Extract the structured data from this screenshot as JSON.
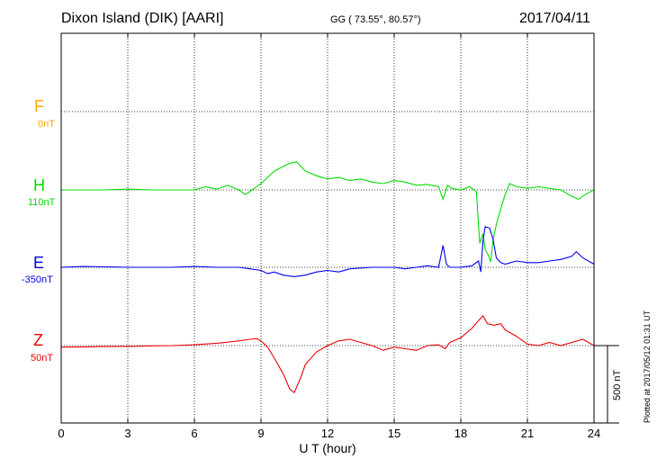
{
  "header": {
    "station": "Dixon Island (DIK)  [AARI]",
    "coords": "GG ( 73.55°,  80.57°)",
    "date": "2017/04/11"
  },
  "footer": {
    "plotted": "Plotted at 2017/05/12 01:31  UT"
  },
  "chart_data": {
    "type": "line",
    "xlabel": "U T (hour)",
    "xlim": [
      0,
      24
    ],
    "xticks": [
      "0",
      "3",
      "6",
      "9",
      "12",
      "15",
      "18",
      "21",
      "24"
    ],
    "scale_bar_label": "500 nT",
    "scale_bar_nT": 500,
    "channels": [
      {
        "name": "F",
        "baseline": "0nT",
        "color": "#ffa500"
      },
      {
        "name": "H",
        "baseline": "110nT",
        "color": "#00dd00"
      },
      {
        "name": "E",
        "baseline": "-350nT",
        "color": "#0000ee"
      },
      {
        "name": "Z",
        "baseline": "50nT",
        "color": "#ee0000"
      }
    ],
    "series": [
      {
        "name": "H",
        "x": [
          0,
          1,
          2,
          3,
          4,
          5,
          6,
          6.5,
          7,
          7.5,
          8,
          8.3,
          8.7,
          9,
          9.3,
          9.6,
          10,
          10.3,
          10.6,
          11,
          11.5,
          12,
          12.5,
          13,
          13.5,
          14,
          14.5,
          15,
          15.5,
          16,
          16.5,
          17,
          17.2,
          17.4,
          17.6,
          18,
          18.4,
          18.7,
          18.85,
          19,
          19.1,
          19.25,
          19.35,
          19.45,
          19.6,
          19.8,
          20,
          20.2,
          20.5,
          20.8,
          21,
          21.5,
          22,
          22.5,
          23,
          23.3,
          23.6,
          24
        ],
        "values": [
          0,
          0,
          0,
          5,
          0,
          0,
          0,
          20,
          5,
          30,
          0,
          -30,
          10,
          40,
          80,
          120,
          150,
          170,
          180,
          120,
          90,
          70,
          80,
          60,
          70,
          50,
          40,
          60,
          50,
          30,
          35,
          20,
          -60,
          30,
          10,
          0,
          20,
          -10,
          -340,
          -280,
          -380,
          -420,
          -460,
          -320,
          -220,
          -120,
          -30,
          40,
          20,
          15,
          10,
          20,
          10,
          0,
          -40,
          -60,
          -30,
          0
        ]
      },
      {
        "name": "E",
        "x": [
          0,
          1,
          2,
          3,
          4,
          5,
          6,
          7,
          8,
          8.5,
          9,
          9.3,
          9.6,
          10,
          10.5,
          11,
          11.5,
          12,
          12.5,
          13,
          14,
          15,
          15.5,
          16,
          16.5,
          17,
          17.2,
          17.35,
          17.5,
          18,
          18.5,
          18.8,
          18.9,
          19,
          19.1,
          19.3,
          19.45,
          19.6,
          19.8,
          20,
          20.5,
          21,
          21.5,
          22,
          22.5,
          23,
          23.2,
          23.5,
          24
        ],
        "values": [
          0,
          5,
          3,
          0,
          0,
          0,
          5,
          0,
          0,
          -10,
          -20,
          -40,
          -30,
          -50,
          -60,
          -50,
          -30,
          -20,
          -30,
          -10,
          0,
          0,
          -10,
          0,
          10,
          0,
          140,
          20,
          0,
          0,
          10,
          40,
          -30,
          170,
          260,
          250,
          180,
          60,
          30,
          20,
          40,
          30,
          30,
          40,
          50,
          70,
          100,
          60,
          20
        ]
      },
      {
        "name": "Z",
        "x": [
          0,
          1,
          2,
          3,
          4,
          5,
          6,
          7,
          8,
          8.5,
          8.8,
          9,
          9.3,
          9.6,
          10,
          10.3,
          10.5,
          10.8,
          11,
          11.5,
          12,
          12.5,
          13,
          13.5,
          14,
          14.5,
          15,
          15.5,
          16,
          16.5,
          17,
          17.3,
          17.5,
          18,
          18.5,
          18.8,
          19,
          19.2,
          19.5,
          19.8,
          20,
          20.5,
          21,
          21.5,
          22,
          22.5,
          23,
          23.5,
          24
        ],
        "values": [
          -10,
          -8,
          -5,
          -5,
          -2,
          0,
          5,
          15,
          30,
          40,
          45,
          30,
          -10,
          -80,
          -180,
          -280,
          -300,
          -200,
          -120,
          -40,
          0,
          30,
          40,
          20,
          0,
          -30,
          -10,
          -20,
          -30,
          0,
          5,
          -20,
          20,
          50,
          110,
          160,
          190,
          140,
          130,
          140,
          100,
          60,
          10,
          0,
          20,
          0,
          20,
          40,
          0
        ]
      }
    ]
  }
}
